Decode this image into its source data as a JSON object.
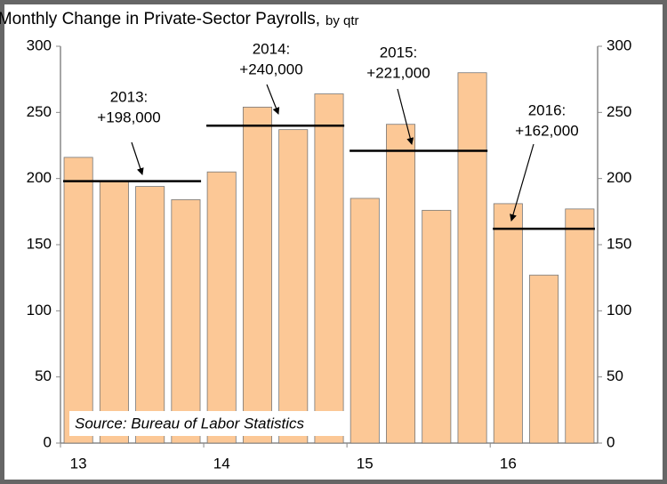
{
  "chart_data": {
    "type": "bar",
    "title": "Average Monthly Change in Private-Sector Payrolls,",
    "subtitle": "by qtr",
    "categories": [
      "13",
      null,
      null,
      null,
      "14",
      null,
      null,
      null,
      "15",
      null,
      null,
      null,
      "16",
      null,
      null
    ],
    "values": [
      216,
      198,
      194,
      184,
      205,
      254,
      237,
      264,
      185,
      241,
      176,
      280,
      181,
      127,
      177
    ],
    "color": "#fcc896",
    "ylim": [
      0,
      300
    ],
    "yticks": [
      0,
      50,
      100,
      150,
      200,
      250,
      300
    ],
    "right_axis": true,
    "annotations": [
      {
        "lines": [
          "2013:",
          "+198,000"
        ],
        "value": 198
      },
      {
        "lines": [
          "2014:",
          "+240,000"
        ],
        "value": 240
      },
      {
        "lines": [
          "2015:",
          "+221,000"
        ],
        "value": 221
      },
      {
        "lines": [
          "2016:",
          "+162,000"
        ],
        "value": 162
      }
    ],
    "source": "Source: Bureau of Labor Statistics"
  }
}
